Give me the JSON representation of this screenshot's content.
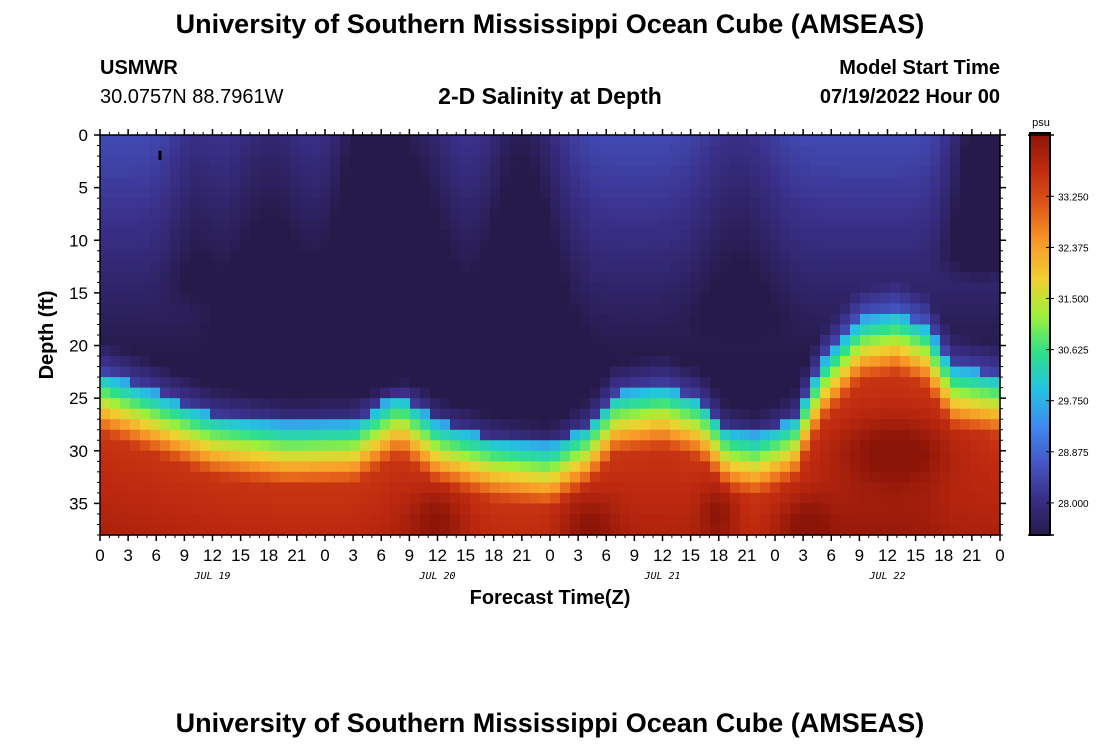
{
  "header": {
    "title_top": "University of Southern Mississippi Ocean Cube (AMSEAS)",
    "title_bottom": "University of Southern Mississippi Ocean Cube (AMSEAS)",
    "station": "USMWR",
    "coords": "30.0757N  88.7961W",
    "model_start_label": "Model Start Time",
    "model_start_value": "07/19/2022 Hour 00"
  },
  "chart_data": {
    "type": "heatmap",
    "title": "2-D Salinity at Depth",
    "xlabel": "Forecast Time(Z)",
    "ylabel": "Depth (ft)",
    "x_range_hours": [
      0,
      96
    ],
    "x_tick_labels": [
      "0",
      "3",
      "6",
      "9",
      "12",
      "15",
      "18",
      "21",
      "0",
      "3",
      "6",
      "9",
      "12",
      "15",
      "18",
      "21",
      "0",
      "3",
      "6",
      "9",
      "12",
      "15",
      "18",
      "21",
      "0",
      "3",
      "6",
      "9",
      "12",
      "15",
      "18",
      "21",
      "0"
    ],
    "date_labels": [
      {
        "label": "JUL 19",
        "hour": 12
      },
      {
        "label": "JUL 20",
        "hour": 36
      },
      {
        "label": "JUL 21",
        "hour": 60
      },
      {
        "label": "JUL 22",
        "hour": 84
      }
    ],
    "y_range_ft": [
      0,
      38
    ],
    "y_ticks": [
      0,
      5,
      10,
      15,
      20,
      25,
      30,
      35
    ],
    "colorbar": {
      "unit": "psu",
      "min": 27.45,
      "max": 34.3,
      "tick_values": [
        28.0,
        28.875,
        29.75,
        30.625,
        31.5,
        32.375,
        33.25
      ],
      "tick_labels": [
        "28.000",
        "28.875",
        "29.750",
        "30.625",
        "31.500",
        "32.375",
        "33.250"
      ],
      "colors": [
        "#261a4a",
        "#3a2f88",
        "#4458c8",
        "#3f8bf0",
        "#23c4e0",
        "#2fe08a",
        "#9ef03a",
        "#f0d030",
        "#f89a28",
        "#e05818",
        "#c02a10",
        "#8a1408"
      ]
    },
    "halocline_depth_ft": [
      {
        "hour": 0,
        "depth": 22.5
      },
      {
        "hour": 6,
        "depth": 24.5
      },
      {
        "hour": 12,
        "depth": 26.5
      },
      {
        "hour": 20,
        "depth": 27.5
      },
      {
        "hour": 27,
        "depth": 27.3
      },
      {
        "hour": 32,
        "depth": 24.5
      },
      {
        "hour": 36,
        "depth": 27.3
      },
      {
        "hour": 42,
        "depth": 28.8
      },
      {
        "hour": 48,
        "depth": 29.5
      },
      {
        "hour": 52,
        "depth": 27.5
      },
      {
        "hour": 55,
        "depth": 24.5
      },
      {
        "hour": 60,
        "depth": 23.8
      },
      {
        "hour": 64,
        "depth": 25.0
      },
      {
        "hour": 67,
        "depth": 28.0
      },
      {
        "hour": 70,
        "depth": 28.5
      },
      {
        "hour": 74,
        "depth": 27.0
      },
      {
        "hour": 77,
        "depth": 21.5
      },
      {
        "hour": 81,
        "depth": 17.5
      },
      {
        "hour": 85,
        "depth": 16.8
      },
      {
        "hour": 88,
        "depth": 18.0
      },
      {
        "hour": 91,
        "depth": 22.0
      },
      {
        "hour": 96,
        "depth": 22.8
      }
    ],
    "fresh_surface_zones": [
      {
        "hour": 10,
        "width": 3,
        "max_depth": 14,
        "strength": 0.18
      },
      {
        "hour": 18,
        "width": 5,
        "max_depth": 18,
        "strength": 0.3
      },
      {
        "hour": 29,
        "width": 4.5,
        "max_depth": 22,
        "strength": 0.55
      },
      {
        "hour": 35,
        "width": 4,
        "max_depth": 18,
        "strength": 0.25
      },
      {
        "hour": 45,
        "width": 4.5,
        "max_depth": 22,
        "strength": 0.42
      },
      {
        "hour": 68,
        "width": 4.5,
        "max_depth": 17,
        "strength": 0.2
      },
      {
        "hour": 94,
        "width": 3.5,
        "max_depth": 11,
        "strength": 0.55
      }
    ],
    "salty_bottom_zones": [
      {
        "hour": 36,
        "depth": 36.5,
        "width": 3
      },
      {
        "hour": 52,
        "depth": 37,
        "width": 3
      },
      {
        "hour": 66,
        "depth": 36,
        "width": 2
      },
      {
        "hour": 75,
        "depth": 37,
        "width": 3
      },
      {
        "hour": 85,
        "depth": 30,
        "width": 6
      }
    ]
  }
}
